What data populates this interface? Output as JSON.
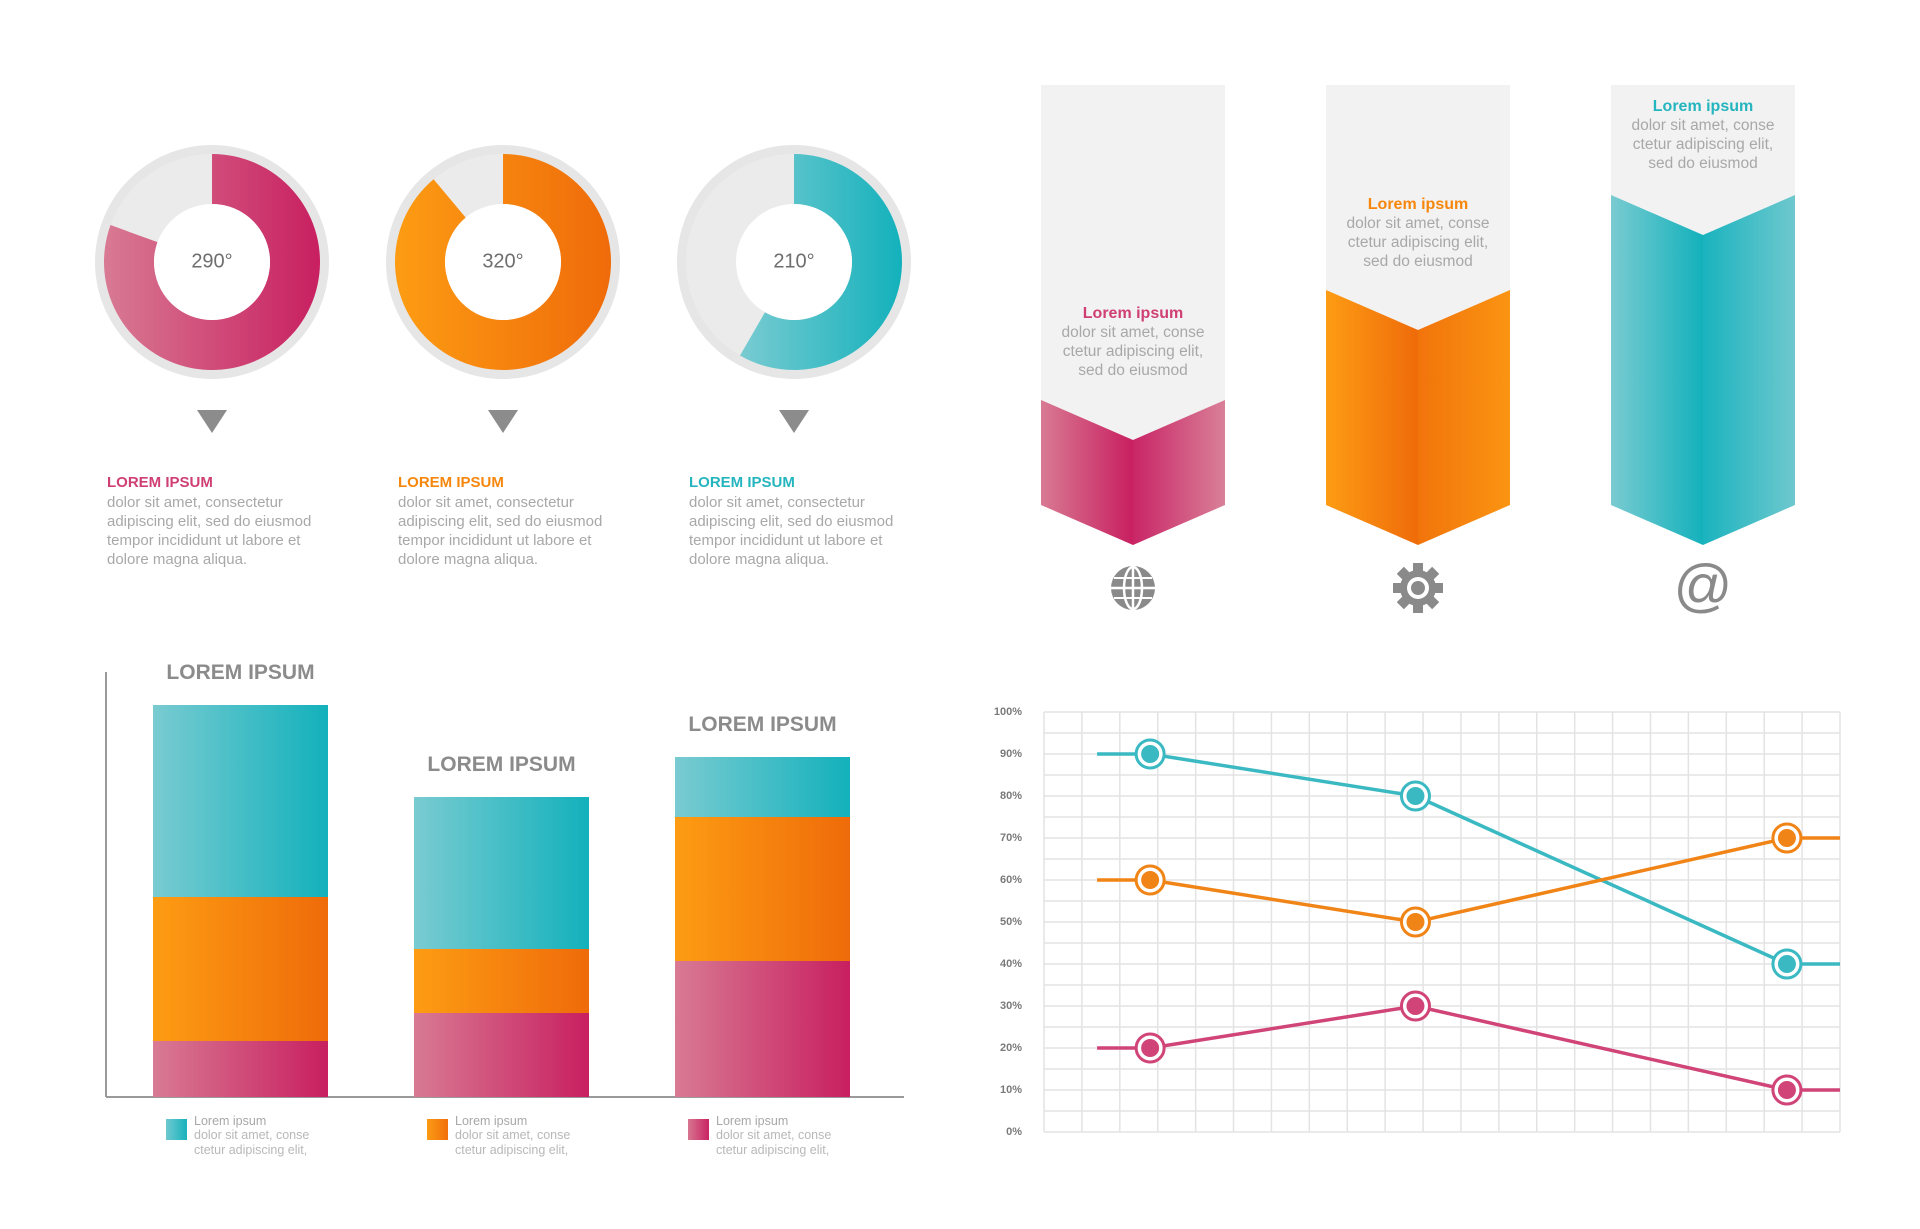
{
  "colors": {
    "pink": "#cf3f73",
    "orange": "#f7870c",
    "teal": "#25b5bf",
    "gray": "#8a8a8a",
    "light": "#f2f2f2"
  },
  "donuts": [
    {
      "value_label": "290°",
      "degrees": 290,
      "color": "pink",
      "title": "LOREM IPSUM",
      "body": [
        "dolor sit amet, consectetur",
        "adipiscing elit, sed do eiusmod",
        "tempor incididunt ut labore et",
        "dolore magna aliqua."
      ]
    },
    {
      "value_label": "320°",
      "degrees": 320,
      "color": "orange",
      "title": "LOREM IPSUM",
      "body": [
        "dolor sit amet, consectetur",
        "adipiscing elit, sed do eiusmod",
        "tempor incididunt ut labore et",
        "dolore magna aliqua."
      ]
    },
    {
      "value_label": "210°",
      "degrees": 210,
      "color": "teal",
      "title": "LOREM IPSUM",
      "body": [
        "dolor sit amet, consectetur",
        "adipiscing elit, sed do eiusmod",
        "tempor incididunt ut labore et",
        "dolore magna aliqua."
      ]
    }
  ],
  "ribbons": [
    {
      "title": "Lorem ipsum",
      "body": [
        "dolor sit amet, conse",
        "ctetur adipiscing elit,",
        "sed do eiusmod"
      ],
      "color": "pink",
      "icon": "globe-icon"
    },
    {
      "title": "Lorem ipsum",
      "body": [
        "dolor sit amet, conse",
        "ctetur adipiscing elit,",
        "sed do eiusmod"
      ],
      "color": "orange",
      "icon": "gear-icon"
    },
    {
      "title": "Lorem ipsum",
      "body": [
        "dolor sit amet, conse",
        "ctetur adipiscing elit,",
        "sed do eiusmod"
      ],
      "color": "teal",
      "icon": "at-sign-icon",
      "icon_text": "@"
    }
  ],
  "chart_data": [
    {
      "type": "bar",
      "stacked": true,
      "categories": [
        "LOREM IPSUM",
        "LOREM IPSUM",
        "LOREM IPSUM"
      ],
      "series": [
        {
          "name": "Lorem ipsum",
          "color": "pink",
          "values": [
            14,
            21,
            34
          ]
        },
        {
          "name": "Lorem ipsum",
          "color": "orange",
          "values": [
            36,
            16,
            36
          ]
        },
        {
          "name": "Lorem ipsum",
          "color": "teal",
          "values": [
            48,
            38,
            15
          ]
        }
      ],
      "ylim": [
        0,
        110
      ],
      "legend": [
        {
          "title": "Lorem ipsum",
          "body": [
            "dolor sit amet, conse",
            "ctetur adipiscing elit,"
          ],
          "color": "teal"
        },
        {
          "title": "Lorem ipsum",
          "body": [
            "dolor sit amet, conse",
            "ctetur adipiscing elit,"
          ],
          "color": "orange"
        },
        {
          "title": "Lorem ipsum",
          "body": [
            "dolor sit amet, conse",
            "ctetur adipiscing elit,"
          ],
          "color": "pink"
        }
      ]
    },
    {
      "type": "line",
      "y_ticks": [
        "0%",
        "10%",
        "20%",
        "30%",
        "40%",
        "50%",
        "60%",
        "70%",
        "80%",
        "90%",
        "100%"
      ],
      "ylim": [
        0,
        100
      ],
      "xlim": [
        0,
        15
      ],
      "grid": true,
      "series": [
        {
          "color": "teal",
          "x": [
            1,
            2,
            7,
            14,
            15
          ],
          "y": [
            90,
            90,
            80,
            40,
            40
          ],
          "marker_x": [
            2,
            7,
            14
          ]
        },
        {
          "color": "orange",
          "x": [
            1,
            2,
            7,
            14,
            15
          ],
          "y": [
            60,
            60,
            50,
            70,
            70
          ],
          "marker_x": [
            2,
            7,
            14
          ]
        },
        {
          "color": "pink",
          "x": [
            1,
            2,
            7,
            14,
            15
          ],
          "y": [
            20,
            20,
            30,
            10,
            10
          ],
          "marker_x": [
            2,
            7,
            14
          ]
        }
      ]
    }
  ]
}
